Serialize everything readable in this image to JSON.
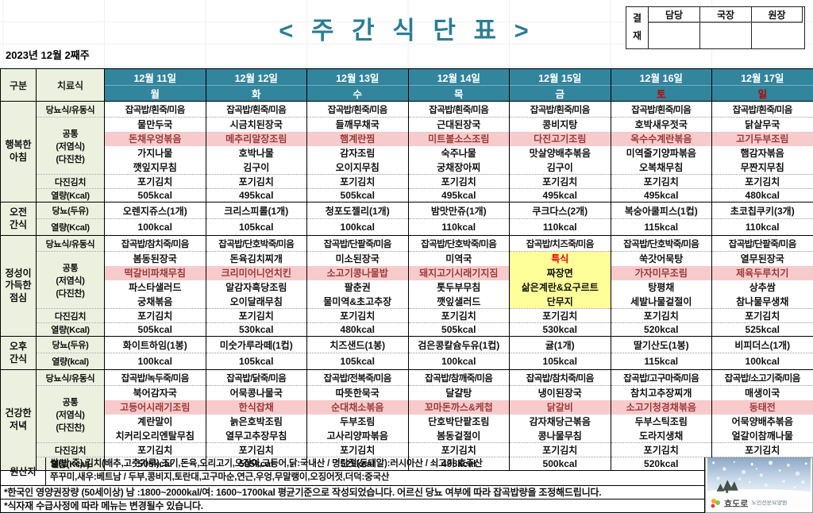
{
  "page": {
    "title": "< 주 간 식 단 표 >",
    "week_label": "2023년 12월 2째주"
  },
  "approval": {
    "stamp_label": "결재",
    "columns": [
      "담당",
      "국장",
      "원장"
    ]
  },
  "colors": {
    "header_teal": "#31859C",
    "title_teal": "#2C7D93",
    "weekend_red": "#C00000",
    "label_green": "#EBF1DE",
    "highlight_pink": "#F7CBCB",
    "highlight_text": "#9E3838",
    "special_yellow": "#FFFF99",
    "special_red": "#F00000"
  },
  "table": {
    "corner_label": "구분",
    "diet_label": "치료식",
    "days": [
      {
        "date": "12월 11일",
        "dow": "월",
        "weekend": false
      },
      {
        "date": "12월 12일",
        "dow": "화",
        "weekend": false
      },
      {
        "date": "12월 13일",
        "dow": "수",
        "weekend": false
      },
      {
        "date": "12월 14일",
        "dow": "목",
        "weekend": false
      },
      {
        "date": "12월 15일",
        "dow": "금",
        "weekend": false
      },
      {
        "date": "12월 16일",
        "dow": "토",
        "weekend": true
      },
      {
        "date": "12월 17일",
        "dow": "일",
        "weekend": true
      }
    ],
    "sections": [
      {
        "type": "meal",
        "name": "행복한\n아침",
        "diabetic_label": "당뇨식/유동식",
        "diabetic": [
          "잡곡밥/흰죽/미음",
          "잡곡밥/흰죽/미음",
          "잡곡밥/흰죽/미음",
          "잡곡밥/흰죽/미음",
          "잡곡밥/흰죽/미음",
          "잡곡밥/흰죽/미음",
          "잡곡밥/흰죽/미음"
        ],
        "common_label": [
          "공통",
          "(저염식)",
          "(다진찬)"
        ],
        "menu_rows": [
          [
            "물만두국",
            "시금치된장국",
            "들깨무채국",
            "근대된장국",
            "콩비지탕",
            "호박새우젓국",
            "닭살무국"
          ],
          [
            "돈채우엉볶음",
            "메추리알장조림",
            "햄계란찜",
            "미트볼소스조림",
            "다진고기조림",
            "옥수수계란볶음",
            "고기두부조림"
          ],
          [
            "가지나물",
            "호박나물",
            "감자조림",
            "숙주나물",
            "맛살양배추볶음",
            "미역줄기양파볶음",
            "햄감자볶음"
          ],
          [
            "깻잎지무침",
            "김구이",
            "오이지무침",
            "궁채장아찌",
            "김구이",
            "오복채무침",
            "무짠지무침"
          ]
        ],
        "kimchi_label": "다진김치",
        "kimchi": [
          "포기김치",
          "포기김치",
          "포기김치",
          "포기김치",
          "포기김치",
          "포기김치",
          "포기김치"
        ],
        "kcal_label": "열량(Kcal)",
        "kcal": [
          "505kcal",
          "495kcal",
          "505kcal",
          "495kcal",
          "495kcal",
          "495kcal",
          "480kcal"
        ]
      },
      {
        "type": "snack",
        "name": "오전\n간식",
        "row_label": "당뇨(두유)",
        "items": [
          "오렌지쥬스(1개)",
          "크리스피롤(1개)",
          "청포도젤리(1개)",
          "밤맛만쥬(1개)",
          "쿠크다스(2개)",
          "복숭아쿨피스(1컵)",
          "초코칩쿠키(3개)"
        ],
        "kcal_label": "열량(Kcal)",
        "kcal": [
          "100kcal",
          "105kcal",
          "100kcal",
          "110kcal",
          "110kcal",
          "115kcal",
          "110kcal"
        ]
      },
      {
        "type": "meal",
        "name": "정성이\n가득한\n점심",
        "diabetic_label": "당뇨식/유동식",
        "diabetic": [
          "잡곡밥/참치죽/미음",
          "잡곡밥/단호박죽/미음",
          "잡곡밥/단팥죽/미음",
          "잡곡밥/단호박죽/미음",
          "잡곡밥/치즈죽/미음",
          "잡곡밥/단호박죽/미음",
          "잡곡밥/단팥죽/미음"
        ],
        "common_label": [
          "공통",
          "(저염식)",
          "(다진찬)"
        ],
        "special_day": 4,
        "menu_rows": [
          [
            "봄동된장국",
            "돈육김치찌개",
            "미소된장국",
            "미역국",
            "특식",
            "쑥갓어묵탕",
            "열무된장국"
          ],
          [
            "떡갈비파채무침",
            "크리미어니언치킨",
            "소고기콩나물밥",
            "돼지고기시래기지짐",
            "짜장면",
            "가자미무조림",
            "제육두루치기"
          ],
          [
            "파스타샐러드",
            "알감자흑당조림",
            "팔춘권",
            "톳두부무침",
            "삶은계란&요구르트",
            "탕평채",
            "상추쌈"
          ],
          [
            "궁채볶음",
            "오이달래무침",
            "물미역&초고추장",
            "깻잎샐러드",
            "단무지",
            "세발나물겉절이",
            "참나물무생채"
          ]
        ],
        "kimchi_label": "다진김치",
        "kimchi": [
          "포기김치",
          "포기김치",
          "포기김치",
          "포기김치",
          "포기김치",
          "포기김치",
          "포기김치"
        ],
        "kcal_label": "열량(Kcal)",
        "kcal": [
          "505kcal",
          "530kcal",
          "480kcal",
          "505kcal",
          "530kcal",
          "520kcal",
          "525kcal"
        ]
      },
      {
        "type": "snack",
        "name": "오후\n간식",
        "row_label": "당뇨(두유)",
        "items": [
          "화이트하임(1봉)",
          "미숫가루라떼(1컵)",
          "치즈샌드(1봉)",
          "검은콩칼슘두유(1컵)",
          "귤(1개)",
          "딸기산도(1봉)",
          "비피더스(1개)"
        ],
        "kcal_label": "열량(kcal)",
        "kcal": [
          "100kcal",
          "105kcal",
          "105kcal",
          "100kcal",
          "105kcal",
          "115kcal",
          "100kcal"
        ]
      },
      {
        "type": "meal",
        "name": "건강한\n저녁",
        "diabetic_label": "당뇨식/유동식",
        "diabetic": [
          "잡곡밥/녹두죽/미음",
          "잡곡밥/닭죽/미음",
          "잡곡밥/전복죽/미음",
          "잡곡밥/참깨죽/미음",
          "잡곡밥/참치죽/미음",
          "잡곡밥/고구마죽/미음",
          "잡곡밥/소고기죽/미음"
        ],
        "common_label": [
          "공통",
          "(저염식)",
          "(다진찬)"
        ],
        "menu_rows": [
          [
            "북어감자국",
            "어묵콩나물국",
            "따뜻한묵국",
            "달걀탕",
            "냉이된장국",
            "참치고추장찌개",
            "매생이국"
          ],
          [
            "고등어시래기조림",
            "한식잡채",
            "순대채소볶음",
            "꼬마돈까스&케첩",
            "닭갈비",
            "소고기청경채볶음",
            "동태전"
          ],
          [
            "계란말이",
            "늙은호박조림",
            "두부조림",
            "단호박단팥조림",
            "감자채당근볶음",
            "두부스틱조림",
            "어묵양배추볶음"
          ],
          [
            "치커리오리엔탈무침",
            "열무고추장무침",
            "고사리양파볶음",
            "봄동겉절이",
            "콩나물무침",
            "도라지생채",
            "얼갈이참깨나물"
          ]
        ],
        "kimchi_label": "다진김치",
        "kimchi": [
          "포기김치",
          "포기김치",
          "포기김치",
          "포기김치",
          "포기김치",
          "포기김치",
          "포기김치"
        ],
        "kcal_label": "열량(Kcal)",
        "kcal": [
          "505kcal",
          "505kcal",
          "525kcal",
          "495kcal",
          "500kcal",
          "520kcal",
          "525kcal"
        ]
      }
    ]
  },
  "origin": {
    "label": "원산지",
    "lines": [
      "쌀(밥,죽),김치(배추,고춧가루),조기,돈육,오리고기,오징어,고등어,닭:국내산 / 명란젓(동태알):러시아산 / 쇠고기:호주산",
      "쭈꾸미,새우:베트남 / 두부,콩비지,토란대,고구마순,연근,우엉,무말랭이,오징어젓,더덕:중국산"
    ]
  },
  "notes": [
    "*한국인 영양권장량 (50세이상) 남 :1800~2000kal/여: 1600~1700kal 평균기준으로 작성되었습니다. 어르신 당뇨 여부에 따라 잡곡밥량을 조정해드립니다.",
    "*식자재 수급사정에 따라 메뉴는 변경될수 있습니다."
  ],
  "logo": {
    "name": "효도로",
    "sub": "노인전문요양원"
  }
}
